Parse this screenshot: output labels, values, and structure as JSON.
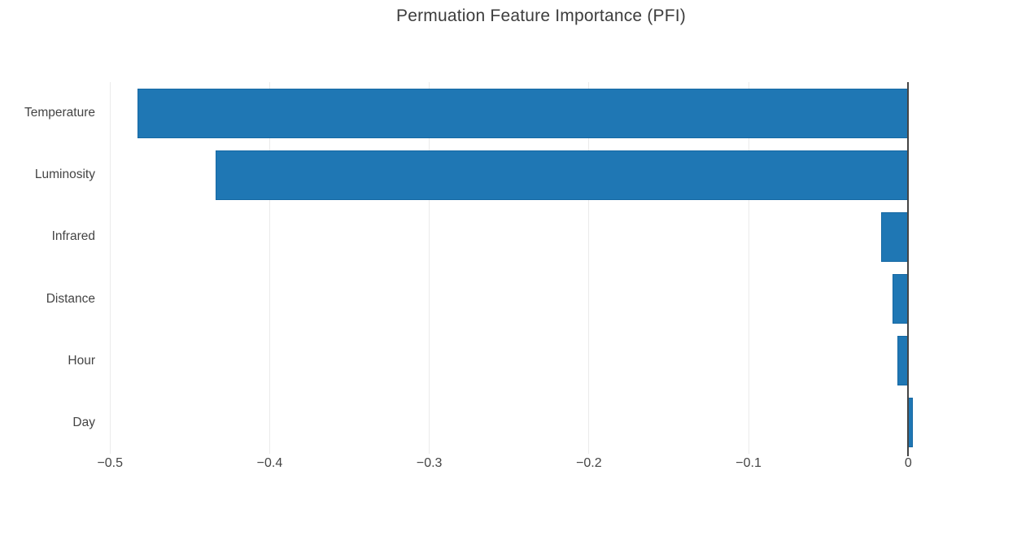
{
  "chart_data": {
    "type": "bar",
    "orientation": "horizontal",
    "title": "Permuation Feature Importance (PFI)",
    "categories": [
      "Temperature",
      "Luminosity",
      "Infrared",
      "Distance",
      "Hour",
      "Day"
    ],
    "values": [
      -0.483,
      -0.434,
      -0.017,
      -0.01,
      -0.007,
      0.003
    ],
    "xlabel": "",
    "ylabel": "",
    "xlim": [
      -0.52,
      0.06
    ],
    "xticks": {
      "values": [
        -0.5,
        -0.4,
        -0.3,
        -0.2,
        -0.1,
        0
      ],
      "labels": [
        "−0.5",
        "−0.4",
        "−0.3",
        "−0.2",
        "−0.1",
        "0"
      ]
    },
    "grid": "vertical-light-gridlines",
    "legend": "none",
    "bar_fraction": 0.8,
    "colors": {
      "bar": "#1f77b4",
      "bar_border": "#1668a3",
      "zero_line": "#444444",
      "grid_line": "#ebebeb",
      "text": "#444444",
      "title_text": "#3d3d3d",
      "background": "#ffffff"
    }
  }
}
